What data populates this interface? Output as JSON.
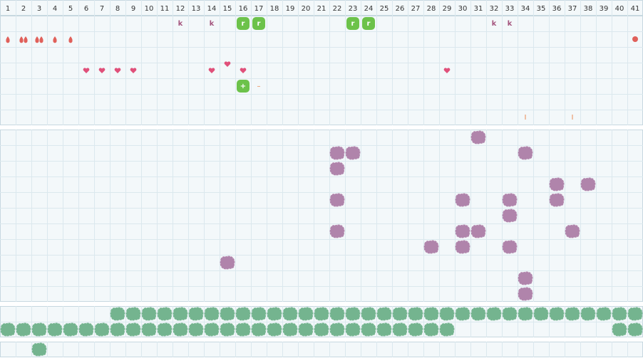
{
  "columns": [
    "1",
    "2",
    "3",
    "4",
    "5",
    "6",
    "7",
    "8",
    "9",
    "10",
    "11",
    "12",
    "13",
    "14",
    "15",
    "16",
    "17",
    "18",
    "19",
    "20",
    "21",
    "22",
    "23",
    "24",
    "25",
    "26",
    "27",
    "28",
    "29",
    "30",
    "31",
    "32",
    "33",
    "34",
    "35",
    "36",
    "37",
    "38",
    "39",
    "40",
    "41"
  ],
  "sections": [
    {
      "rows": [
        [
          {
            "day": 12,
            "icon": "letter",
            "text": "k"
          },
          {
            "day": 14,
            "icon": "letter",
            "text": "k"
          },
          {
            "day": 16,
            "icon": "badge",
            "text": "r"
          },
          {
            "day": 17,
            "icon": "badge",
            "text": "r"
          },
          {
            "day": 23,
            "icon": "badge",
            "text": "r"
          },
          {
            "day": 24,
            "icon": "badge",
            "text": "r"
          },
          {
            "day": 32,
            "icon": "letter",
            "text": "k"
          },
          {
            "day": 33,
            "icon": "letter",
            "text": "k"
          }
        ],
        [
          {
            "day": 1,
            "icon": "drop"
          },
          {
            "day": 2,
            "icon": "drop",
            "count": 2
          },
          {
            "day": 3,
            "icon": "drop",
            "count": 2
          },
          {
            "day": 4,
            "icon": "drop"
          },
          {
            "day": 5,
            "icon": "drop"
          },
          {
            "day": 41,
            "icon": "dot"
          }
        ],
        [],
        [
          {
            "day": 6,
            "icon": "heart"
          },
          {
            "day": 7,
            "icon": "heart"
          },
          {
            "day": 8,
            "icon": "heart"
          },
          {
            "day": 9,
            "icon": "heart"
          },
          {
            "day": 14,
            "icon": "heart"
          },
          {
            "day": 15,
            "icon": "heart",
            "raised": true
          },
          {
            "day": 16,
            "icon": "heart"
          },
          {
            "day": 29,
            "icon": "heart"
          }
        ],
        [
          {
            "day": 16,
            "icon": "badge",
            "text": "+"
          },
          {
            "day": 17,
            "icon": "mark",
            "text": "–"
          }
        ],
        [],
        [
          {
            "day": 34,
            "icon": "mark",
            "text": "I"
          },
          {
            "day": 37,
            "icon": "mark",
            "text": "I"
          }
        ]
      ]
    },
    {
      "rows": [
        [
          {
            "day": 31,
            "icon": "blob"
          }
        ],
        [
          {
            "day": 22,
            "icon": "blob"
          },
          {
            "day": 23,
            "icon": "blob"
          },
          {
            "day": 34,
            "icon": "blob"
          }
        ],
        [
          {
            "day": 22,
            "icon": "blob"
          }
        ],
        [
          {
            "day": 36,
            "icon": "blob"
          },
          {
            "day": 38,
            "icon": "blob"
          }
        ],
        [
          {
            "day": 22,
            "icon": "blob"
          },
          {
            "day": 30,
            "icon": "blob"
          },
          {
            "day": 33,
            "icon": "blob"
          },
          {
            "day": 36,
            "icon": "blob"
          }
        ],
        [
          {
            "day": 33,
            "icon": "blob"
          }
        ],
        [
          {
            "day": 22,
            "icon": "blob"
          },
          {
            "day": 30,
            "icon": "blob"
          },
          {
            "day": 31,
            "icon": "blob"
          },
          {
            "day": 37,
            "icon": "blob"
          }
        ],
        [
          {
            "day": 28,
            "icon": "blob"
          },
          {
            "day": 30,
            "icon": "blob"
          },
          {
            "day": 33,
            "icon": "blob"
          }
        ],
        [
          {
            "day": 15,
            "icon": "blob"
          }
        ],
        [
          {
            "day": 34,
            "icon": "blob"
          }
        ],
        [
          {
            "day": 34,
            "icon": "blob"
          }
        ]
      ]
    },
    {
      "rows": [
        [
          {
            "span": [
              8,
              41
            ],
            "icon": "leaf"
          }
        ],
        [
          {
            "span": [
              1,
              29
            ],
            "icon": "leaf"
          },
          {
            "span": [
              40,
              41
            ],
            "icon": "leaf"
          }
        ]
      ]
    },
    {
      "rows": [
        [
          {
            "day": 3,
            "icon": "leaf"
          }
        ]
      ]
    }
  ]
}
